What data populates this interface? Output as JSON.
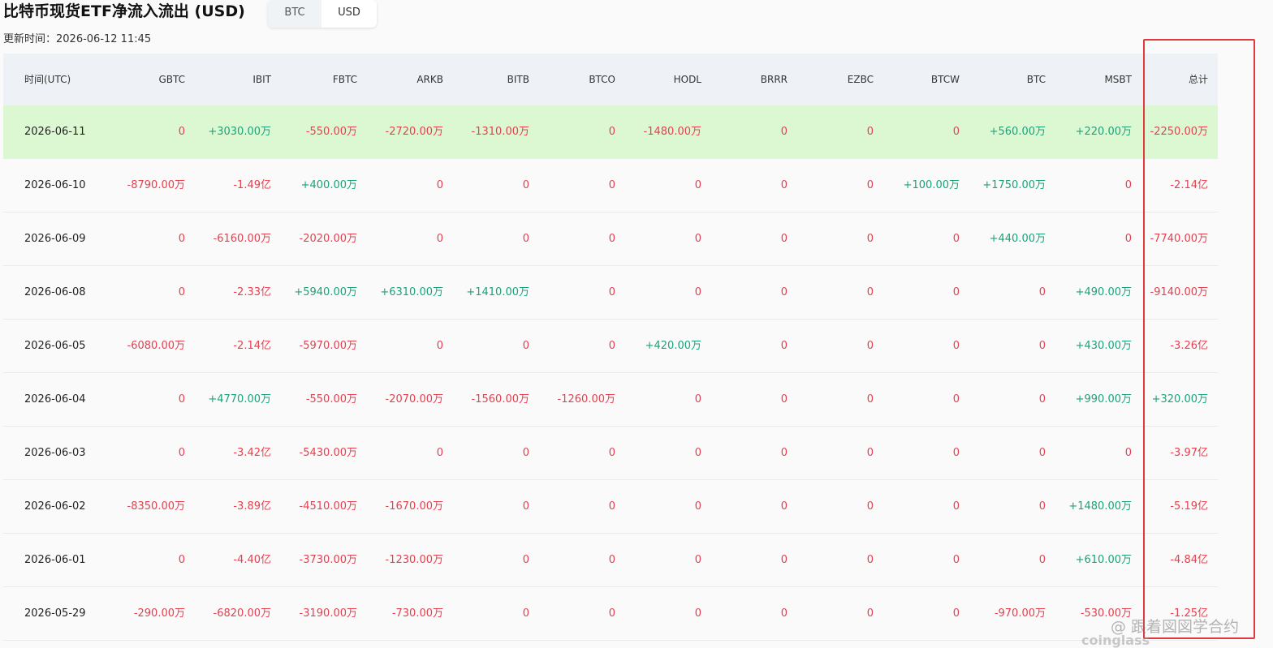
{
  "header": {
    "title": "比特币现货ETF净流入流出 (USD)",
    "toggle": [
      "BTC",
      "USD"
    ],
    "updated": "更新时间：2026-06-12 11:45"
  },
  "table": {
    "columns": [
      "时间(UTC)",
      "GBTC",
      "IBIT",
      "FBTC",
      "ARKB",
      "BITB",
      "BTCO",
      "HODL",
      "BRRR",
      "EZBC",
      "BTCW",
      "BTC",
      "MSBT",
      "总计"
    ],
    "rows": [
      [
        "2026-06-11",
        "0",
        "+3030.00万",
        "-550.00万",
        "-2720.00万",
        "-1310.00万",
        "0",
        "-1480.00万",
        "0",
        "0",
        "0",
        "+560.00万",
        "+220.00万",
        "-2250.00万"
      ],
      [
        "2026-06-10",
        "-8790.00万",
        "-1.49亿",
        "+400.00万",
        "0",
        "0",
        "0",
        "0",
        "0",
        "0",
        "+100.00万",
        "+1750.00万",
        "0",
        "-2.14亿"
      ],
      [
        "2026-06-09",
        "0",
        "-6160.00万",
        "-2020.00万",
        "0",
        "0",
        "0",
        "0",
        "0",
        "0",
        "0",
        "+440.00万",
        "0",
        "-7740.00万"
      ],
      [
        "2026-06-08",
        "0",
        "-2.33亿",
        "+5940.00万",
        "+6310.00万",
        "+1410.00万",
        "0",
        "0",
        "0",
        "0",
        "0",
        "0",
        "+490.00万",
        "-9140.00万"
      ],
      [
        "2026-06-05",
        "-6080.00万",
        "-2.14亿",
        "-5970.00万",
        "0",
        "0",
        "0",
        "+420.00万",
        "0",
        "0",
        "0",
        "0",
        "+430.00万",
        "-3.26亿"
      ],
      [
        "2026-06-04",
        "0",
        "+4770.00万",
        "-550.00万",
        "-2070.00万",
        "-1560.00万",
        "-1260.00万",
        "0",
        "0",
        "0",
        "0",
        "0",
        "+990.00万",
        "+320.00万"
      ],
      [
        "2026-06-03",
        "0",
        "-3.42亿",
        "-5430.00万",
        "0",
        "0",
        "0",
        "0",
        "0",
        "0",
        "0",
        "0",
        "0",
        "-3.97亿"
      ],
      [
        "2026-06-02",
        "-8350.00万",
        "-3.89亿",
        "-4510.00万",
        "-1670.00万",
        "0",
        "0",
        "0",
        "0",
        "0",
        "0",
        "0",
        "+1480.00万",
        "-5.19亿"
      ],
      [
        "2026-06-01",
        "0",
        "-4.40亿",
        "-3730.00万",
        "-1230.00万",
        "0",
        "0",
        "0",
        "0",
        "0",
        "0",
        "0",
        "+610.00万",
        "-4.84亿"
      ],
      [
        "2026-05-29",
        "-290.00万",
        "-6820.00万",
        "-3190.00万",
        "-730.00万",
        "0",
        "0",
        "0",
        "0",
        "0",
        "0",
        "-970.00万",
        "-530.00万",
        "-1.25亿"
      ]
    ]
  },
  "watermark": {
    "handle": "@ 跟着図図学合约",
    "brand": "coinglass"
  }
}
